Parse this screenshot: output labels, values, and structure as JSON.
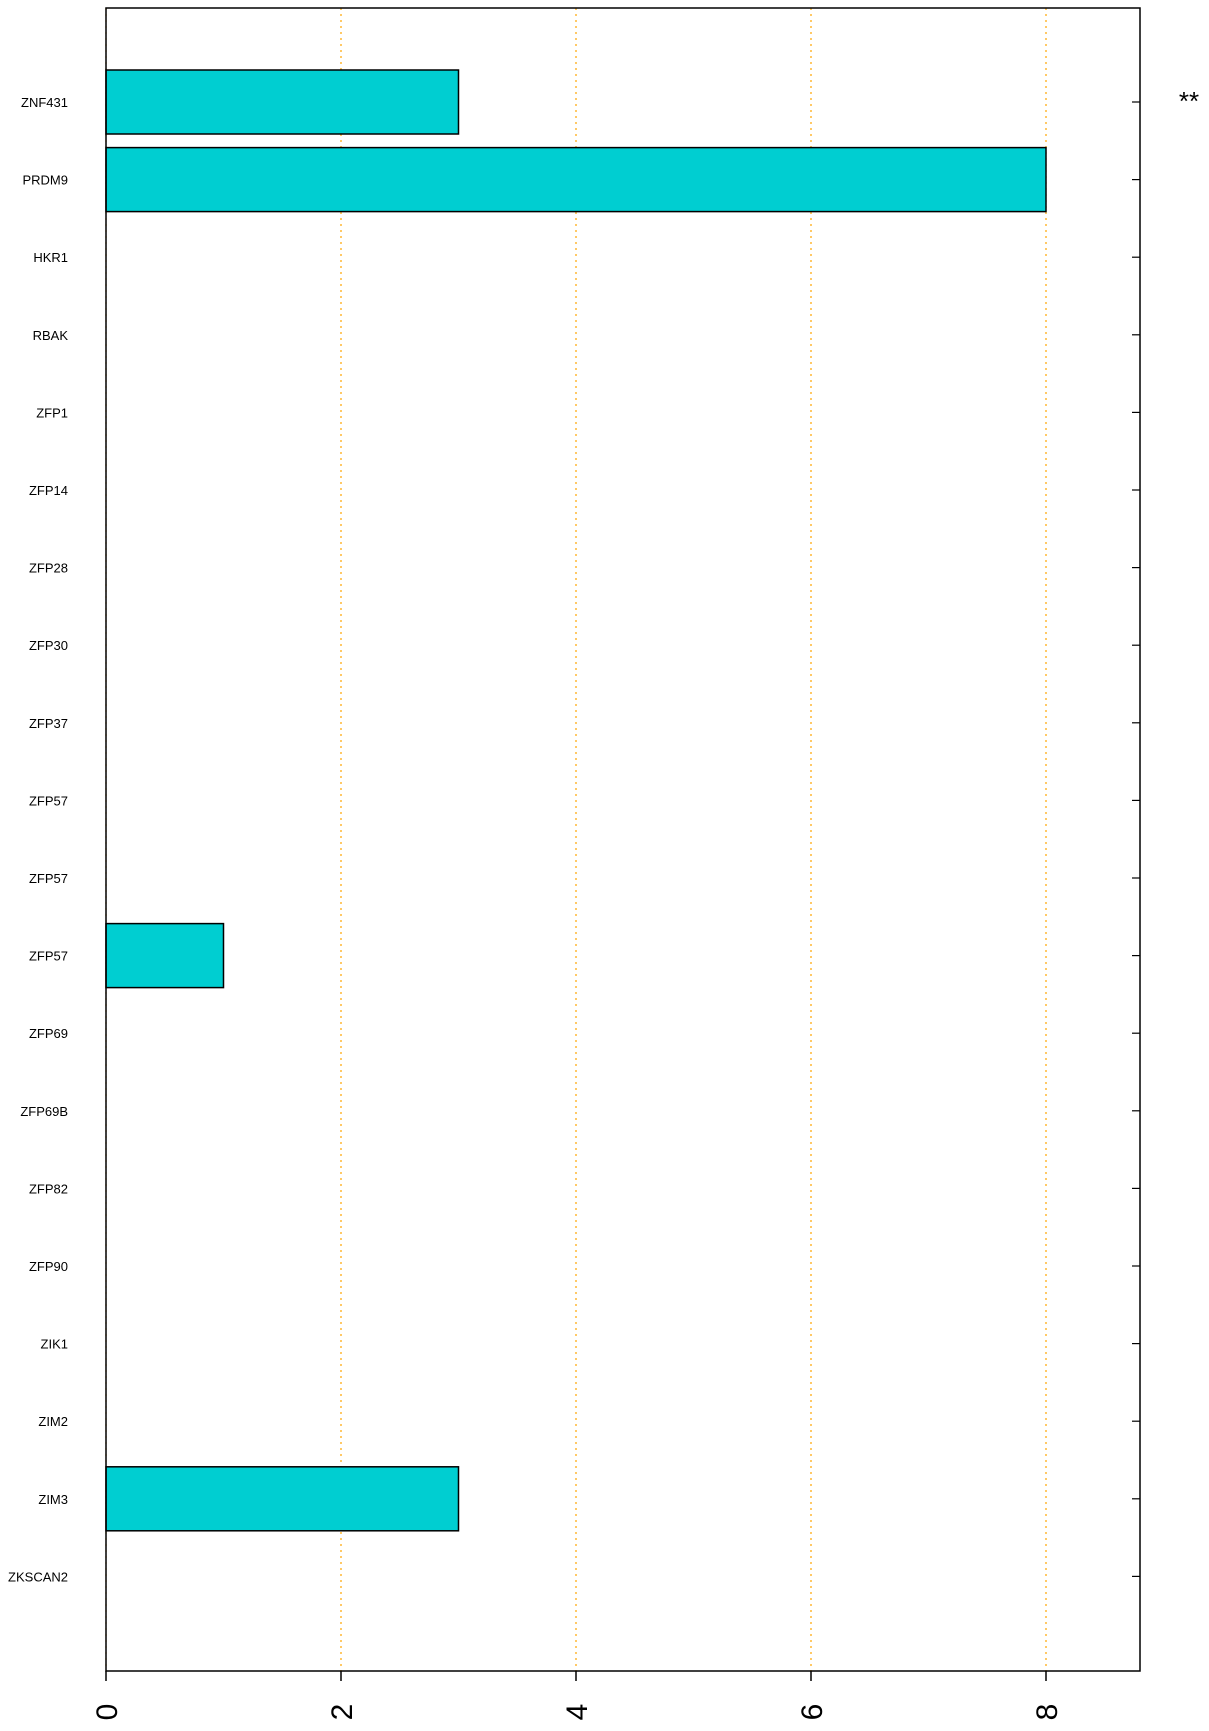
{
  "chart_data": {
    "type": "bar",
    "orientation": "horizontal",
    "categories": [
      "ZNF431",
      "PRDM9",
      "HKR1",
      "RBAK",
      "ZFP1",
      "ZFP14",
      "ZFP28",
      "ZFP30",
      "ZFP37",
      "ZFP57",
      "ZFP57",
      "ZFP57",
      "ZFP69",
      "ZFP69B",
      "ZFP82",
      "ZFP90",
      "ZIK1",
      "ZIM2",
      "ZIM3",
      "ZKSCAN2"
    ],
    "values": [
      3,
      8,
      0,
      0,
      0,
      0,
      0,
      0,
      0,
      0,
      0,
      1,
      0,
      0,
      0,
      0,
      0,
      0,
      3,
      0
    ],
    "xlim": [
      0,
      8.8
    ],
    "xticks": [
      "0",
      "2",
      "4",
      "6",
      "8"
    ],
    "tick_label_rotation": "vertical",
    "grid": "vertical dotted lines at 2, 4, 6, 8",
    "annotations": [
      {
        "category": "ZNF431",
        "text": "**"
      }
    ],
    "title": "",
    "xlabel": "",
    "ylabel": "",
    "colors": {
      "bar_fill": "#00CED1",
      "bar_stroke": "#000000",
      "grid": "#FFA500"
    }
  }
}
